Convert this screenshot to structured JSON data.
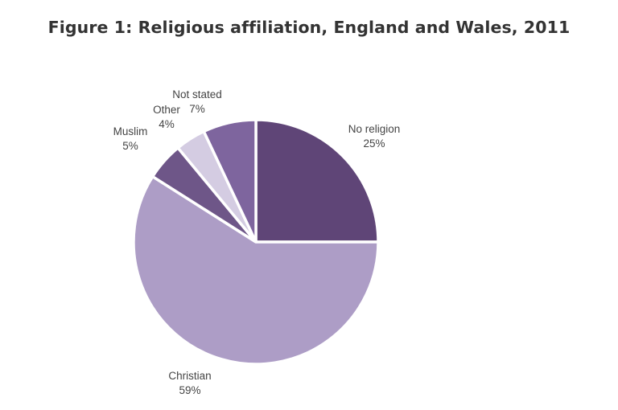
{
  "chart_data": {
    "type": "pie",
    "title": "Figure 1: Religious affiliation, England and Wales, 2011",
    "slices": [
      {
        "label": "No religion",
        "value_label": "25%",
        "value": 25,
        "color": "#5f4577"
      },
      {
        "label": "Christian",
        "value_label": "59%",
        "value": 59,
        "color": "#ad9dc6"
      },
      {
        "label": "Muslim",
        "value_label": "5%",
        "value": 5,
        "color": "#6e5688"
      },
      {
        "label": "Other",
        "value_label": "4%",
        "value": 4,
        "color": "#d4cce2"
      },
      {
        "label": "Not stated",
        "value_label": "7%",
        "value": 7,
        "color": "#7e659e"
      }
    ],
    "start_angle_deg": 0,
    "direction": "clockwise",
    "legend": "none"
  }
}
